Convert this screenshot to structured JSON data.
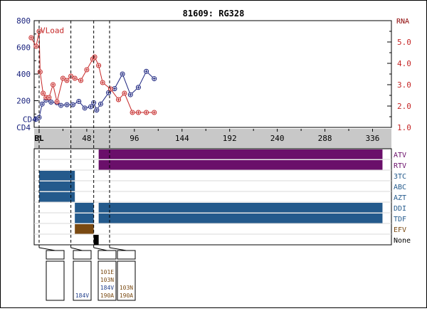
{
  "title": "81609: RG328",
  "left_axis_label": "CD4",
  "right_axis_label": "RNA",
  "colors": {
    "cd4": "#1a237e",
    "vload": "#c62828",
    "purple": "#6a0f6a",
    "blue": "#245a8c",
    "brown": "#7a4a12",
    "none_mark": "#000000",
    "band": "#c8c8c8",
    "mutation": "#7a4a12",
    "mutation_blue": "#1f3d8a"
  },
  "chart_data": {
    "type": "line",
    "title": "81609: RG328",
    "x_axis": {
      "range": [
        -5,
        355
      ],
      "ticks": [
        0,
        48,
        96,
        144,
        192,
        240,
        288,
        336
      ],
      "tick_labels": [
        "BL",
        "48",
        "96",
        "144",
        "192",
        "240",
        "288",
        "336"
      ]
    },
    "y_left": {
      "label": "CD4",
      "range": [
        0,
        800
      ],
      "ticks": [
        200,
        400,
        600,
        800
      ]
    },
    "y_right": {
      "label": "RNA",
      "range": [
        1.0,
        6.0
      ],
      "ticks": [
        1.0,
        2.0,
        3.0,
        4.0,
        5.0
      ]
    },
    "series": [
      {
        "name": "CD4",
        "axis": "left",
        "points": [
          [
            -3,
            62
          ],
          [
            0,
            75
          ],
          [
            3,
            175
          ],
          [
            7,
            205
          ],
          [
            12,
            190
          ],
          [
            18,
            185
          ],
          [
            22,
            165
          ],
          [
            28,
            170
          ],
          [
            34,
            170
          ],
          [
            40,
            195
          ],
          [
            46,
            145
          ],
          [
            52,
            155
          ],
          [
            55,
            185
          ],
          [
            58,
            130
          ],
          [
            62,
            175
          ],
          [
            70,
            260
          ],
          [
            76,
            290
          ],
          [
            84,
            400
          ],
          [
            92,
            245
          ],
          [
            100,
            300
          ],
          [
            108,
            420
          ],
          [
            116,
            365
          ]
        ]
      },
      {
        "name": "VLoad",
        "axis": "right",
        "points": [
          [
            -8,
            5.2
          ],
          [
            -3,
            4.8
          ],
          [
            0,
            5.5
          ],
          [
            1,
            3.6
          ],
          [
            4,
            2.6
          ],
          [
            7,
            2.4
          ],
          [
            10,
            2.4
          ],
          [
            14,
            3.0
          ],
          [
            18,
            2.2
          ],
          [
            24,
            3.3
          ],
          [
            28,
            3.2
          ],
          [
            32,
            3.4
          ],
          [
            36,
            3.3
          ],
          [
            42,
            3.2
          ],
          [
            48,
            3.7
          ],
          [
            54,
            4.2
          ],
          [
            56,
            4.3
          ],
          [
            60,
            3.9
          ],
          [
            64,
            3.1
          ],
          [
            72,
            2.8
          ],
          [
            80,
            2.3
          ],
          [
            86,
            2.6
          ],
          [
            94,
            1.7
          ],
          [
            100,
            1.7
          ],
          [
            108,
            1.7
          ],
          [
            116,
            1.7
          ]
        ]
      }
    ],
    "annotations": [
      {
        "text": "VLoad",
        "x": 0,
        "y": 5.55,
        "axis": "right"
      },
      {
        "text": "CD4",
        "x": -18,
        "y": 62,
        "axis": "left"
      }
    ],
    "markers_weeks": [
      0,
      32,
      55,
      71
    ],
    "drugs": [
      {
        "name": "ATV",
        "color": "purple",
        "segments": [
          [
            60,
            346
          ]
        ]
      },
      {
        "name": "RTV",
        "color": "purple",
        "segments": [
          [
            60,
            346
          ]
        ]
      },
      {
        "name": "3TC",
        "color": "blue",
        "segments": [
          [
            0,
            36
          ]
        ]
      },
      {
        "name": "ABC",
        "color": "blue",
        "segments": [
          [
            0,
            36
          ]
        ]
      },
      {
        "name": "AZT",
        "color": "blue",
        "segments": [
          [
            0,
            36
          ]
        ]
      },
      {
        "name": "DDI",
        "color": "blue",
        "segments": [
          [
            36,
            55
          ],
          [
            60,
            346
          ]
        ]
      },
      {
        "name": "TDF",
        "color": "blue",
        "segments": [
          [
            36,
            55
          ],
          [
            60,
            346
          ]
        ]
      },
      {
        "name": "EFV",
        "color": "brown",
        "segments": [
          [
            36,
            55
          ]
        ]
      },
      {
        "name": "None",
        "color": "none_mark",
        "segments": [
          [
            55,
            60
          ]
        ]
      }
    ],
    "mutation_boxes": [
      {
        "mutations": []
      },
      {
        "mutations": [
          {
            "text": "184V",
            "color": "mutation_blue"
          }
        ]
      },
      {
        "mutations": [
          {
            "text": "101E",
            "color": "mutation"
          },
          {
            "text": "103N",
            "color": "mutation"
          },
          {
            "text": "184V",
            "color": "mutation_blue"
          },
          {
            "text": "190A",
            "color": "mutation"
          }
        ]
      },
      {
        "mutations": [
          {
            "text": "103N",
            "color": "mutation"
          },
          {
            "text": "190A",
            "color": "mutation"
          }
        ]
      }
    ]
  }
}
